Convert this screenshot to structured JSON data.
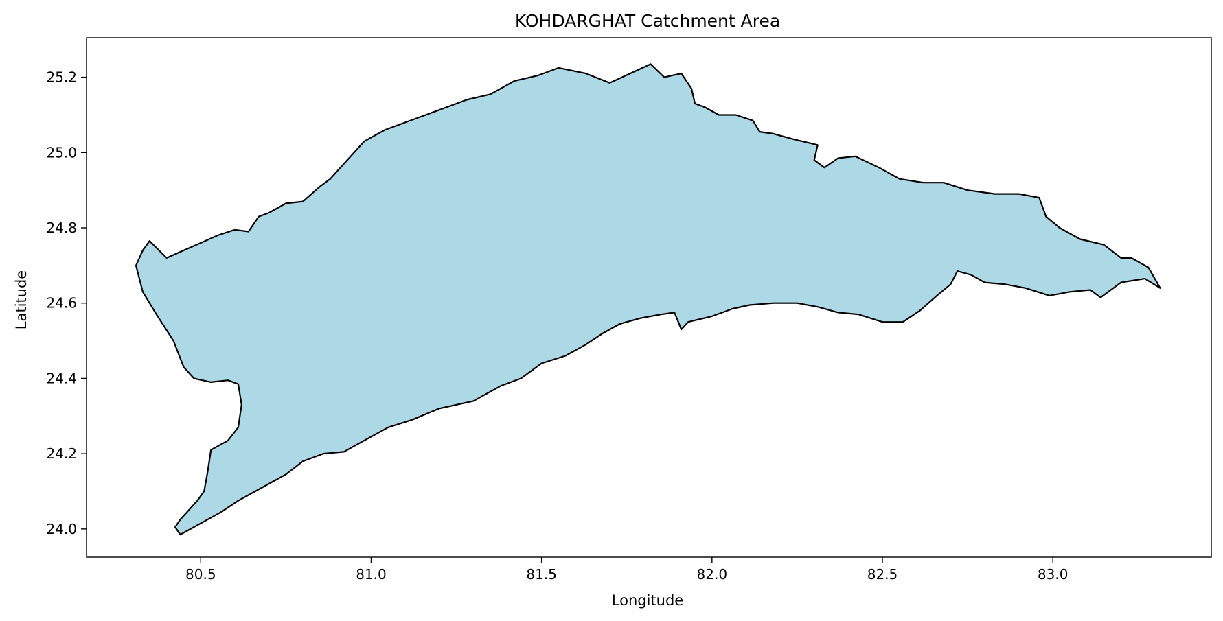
{
  "chart_data": {
    "type": "map",
    "title": "KOHDARGHAT Catchment Area",
    "xlabel": "Longitude",
    "ylabel": "Latitude",
    "xlim": [
      80.165,
      83.465
    ],
    "ylim": [
      23.925,
      25.305
    ],
    "x_ticks": [
      80.5,
      81.0,
      81.5,
      82.0,
      82.5,
      83.0
    ],
    "x_tick_labels": [
      "80.5",
      "81.0",
      "81.5",
      "82.0",
      "82.5",
      "83.0"
    ],
    "y_ticks": [
      24.0,
      24.2,
      24.4,
      24.6,
      24.8,
      25.0,
      25.2
    ],
    "y_tick_labels": [
      "24.0",
      "24.2",
      "24.4",
      "24.6",
      "24.8",
      "25.0",
      "25.2"
    ],
    "grid": false,
    "fill_color": "#add8e6",
    "edge_color": "#000000",
    "boundary_lonlat": [
      [
        80.44,
        23.985
      ],
      [
        80.47,
        24.0
      ],
      [
        80.51,
        24.02
      ],
      [
        80.56,
        24.045
      ],
      [
        80.61,
        24.075
      ],
      [
        80.66,
        24.1
      ],
      [
        80.7,
        24.12
      ],
      [
        80.75,
        24.145
      ],
      [
        80.8,
        24.18
      ],
      [
        80.86,
        24.2
      ],
      [
        80.92,
        24.205
      ],
      [
        80.98,
        24.235
      ],
      [
        81.05,
        24.27
      ],
      [
        81.12,
        24.29
      ],
      [
        81.2,
        24.32
      ],
      [
        81.3,
        24.34
      ],
      [
        81.38,
        24.38
      ],
      [
        81.44,
        24.4
      ],
      [
        81.5,
        24.44
      ],
      [
        81.57,
        24.46
      ],
      [
        81.63,
        24.49
      ],
      [
        81.68,
        24.52
      ],
      [
        81.73,
        24.545
      ],
      [
        81.79,
        24.56
      ],
      [
        81.85,
        24.57
      ],
      [
        81.89,
        24.575
      ],
      [
        81.91,
        24.53
      ],
      [
        81.93,
        24.55
      ],
      [
        82.0,
        24.565
      ],
      [
        82.06,
        24.585
      ],
      [
        82.11,
        24.595
      ],
      [
        82.18,
        24.6
      ],
      [
        82.25,
        24.6
      ],
      [
        82.31,
        24.59
      ],
      [
        82.37,
        24.575
      ],
      [
        82.43,
        24.57
      ],
      [
        82.5,
        24.55
      ],
      [
        82.56,
        24.55
      ],
      [
        82.61,
        24.58
      ],
      [
        82.66,
        24.62
      ],
      [
        82.7,
        24.65
      ],
      [
        82.72,
        24.685
      ],
      [
        82.76,
        24.675
      ],
      [
        82.8,
        24.655
      ],
      [
        82.86,
        24.65
      ],
      [
        82.92,
        24.64
      ],
      [
        82.99,
        24.62
      ],
      [
        83.05,
        24.63
      ],
      [
        83.11,
        24.635
      ],
      [
        83.14,
        24.615
      ],
      [
        83.2,
        24.655
      ],
      [
        83.27,
        24.665
      ],
      [
        83.315,
        24.64
      ],
      [
        83.28,
        24.695
      ],
      [
        83.23,
        24.72
      ],
      [
        83.2,
        24.72
      ],
      [
        83.15,
        24.755
      ],
      [
        83.08,
        24.77
      ],
      [
        83.02,
        24.8
      ],
      [
        82.98,
        24.83
      ],
      [
        82.96,
        24.88
      ],
      [
        82.9,
        24.89
      ],
      [
        82.83,
        24.89
      ],
      [
        82.75,
        24.9
      ],
      [
        82.68,
        24.92
      ],
      [
        82.62,
        24.92
      ],
      [
        82.55,
        24.93
      ],
      [
        82.49,
        24.96
      ],
      [
        82.42,
        24.99
      ],
      [
        82.37,
        24.985
      ],
      [
        82.33,
        24.96
      ],
      [
        82.3,
        24.98
      ],
      [
        82.31,
        25.02
      ],
      [
        82.24,
        25.035
      ],
      [
        82.18,
        25.05
      ],
      [
        82.14,
        25.055
      ],
      [
        82.12,
        25.085
      ],
      [
        82.07,
        25.1
      ],
      [
        82.02,
        25.1
      ],
      [
        81.98,
        25.12
      ],
      [
        81.95,
        25.13
      ],
      [
        81.94,
        25.17
      ],
      [
        81.91,
        25.21
      ],
      [
        81.86,
        25.2
      ],
      [
        81.82,
        25.235
      ],
      [
        81.76,
        25.21
      ],
      [
        81.7,
        25.185
      ],
      [
        81.63,
        25.21
      ],
      [
        81.55,
        25.225
      ],
      [
        81.49,
        25.205
      ],
      [
        81.42,
        25.19
      ],
      [
        81.35,
        25.155
      ],
      [
        81.28,
        25.14
      ],
      [
        81.22,
        25.12
      ],
      [
        81.16,
        25.1
      ],
      [
        81.1,
        25.08
      ],
      [
        81.04,
        25.06
      ],
      [
        80.98,
        25.03
      ],
      [
        80.93,
        24.98
      ],
      [
        80.88,
        24.93
      ],
      [
        80.85,
        24.91
      ],
      [
        80.8,
        24.87
      ],
      [
        80.75,
        24.865
      ],
      [
        80.7,
        24.84
      ],
      [
        80.67,
        24.83
      ],
      [
        80.64,
        24.79
      ],
      [
        80.6,
        24.795
      ],
      [
        80.55,
        24.78
      ],
      [
        80.5,
        24.76
      ],
      [
        80.45,
        24.74
      ],
      [
        80.4,
        24.72
      ],
      [
        80.35,
        24.765
      ],
      [
        80.33,
        24.74
      ],
      [
        80.31,
        24.7
      ],
      [
        80.33,
        24.63
      ],
      [
        80.37,
        24.57
      ],
      [
        80.42,
        24.5
      ],
      [
        80.45,
        24.43
      ],
      [
        80.48,
        24.4
      ],
      [
        80.53,
        24.39
      ],
      [
        80.58,
        24.395
      ],
      [
        80.61,
        24.385
      ],
      [
        80.62,
        24.33
      ],
      [
        80.61,
        24.27
      ],
      [
        80.58,
        24.235
      ],
      [
        80.53,
        24.21
      ],
      [
        80.52,
        24.15
      ],
      [
        80.51,
        24.1
      ],
      [
        80.49,
        24.075
      ],
      [
        80.46,
        24.045
      ],
      [
        80.44,
        24.025
      ],
      [
        80.425,
        24.005
      ]
    ]
  }
}
